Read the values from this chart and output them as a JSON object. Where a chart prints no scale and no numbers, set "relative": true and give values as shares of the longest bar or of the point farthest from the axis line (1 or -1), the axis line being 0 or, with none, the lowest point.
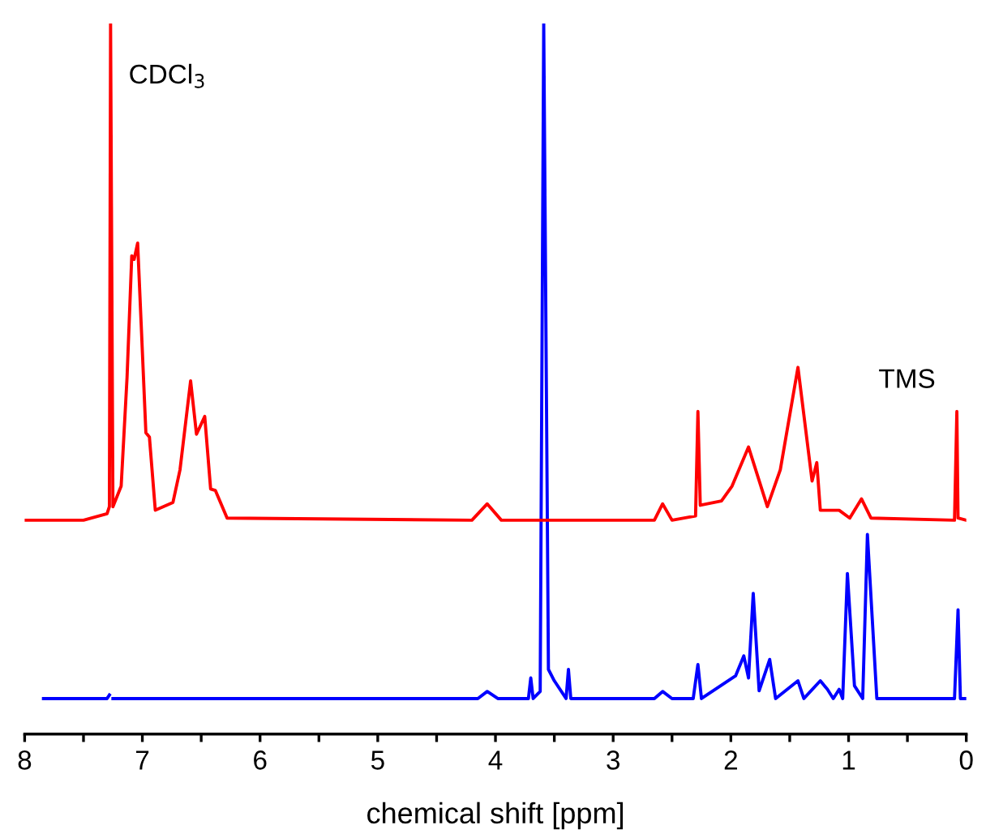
{
  "chart_data": {
    "type": "line",
    "relative": true,
    "xlabel": "chemical shift [ppm]",
    "xlim": [
      8,
      0
    ],
    "xticks": [
      8,
      {
        "value": 7.5,
        "label": null
      },
      7,
      {
        "value": 6.5,
        "label": null
      },
      6,
      {
        "value": 5.5,
        "label": null
      },
      5,
      {
        "value": 4.5,
        "label": null
      },
      4,
      {
        "value": 3.5,
        "label": null
      },
      3,
      {
        "value": 2.5,
        "label": null
      },
      2,
      {
        "value": 1.5,
        "label": null
      },
      1,
      {
        "value": 0.5,
        "label": null
      },
      0
    ],
    "grid": false,
    "legend": false,
    "marker": "none",
    "line_style": "solid",
    "annotations": [
      {
        "text": "CDCl$_{3}$",
        "x": 7.27,
        "y": 1.0
      },
      {
        "text": "TMS",
        "x": 0.07,
        "y": 0.454
      }
    ],
    "series": [
      {
        "color": "#ff0000",
        "x": [
          8.0,
          7.5,
          7.3,
          7.28,
          7.27,
          7.25,
          7.18,
          7.13,
          7.09,
          7.07,
          7.04,
          7.01,
          6.97,
          6.94,
          6.89,
          6.74,
          6.68,
          6.59,
          6.54,
          6.47,
          6.42,
          6.38,
          6.28,
          4.2,
          4.07,
          3.95,
          2.65,
          2.58,
          2.5,
          2.3,
          2.28,
          2.26,
          2.08,
          1.99,
          1.85,
          1.69,
          1.58,
          1.43,
          1.31,
          1.27,
          1.24,
          1.08,
          0.99,
          0.89,
          0.81,
          0.1,
          0.08,
          0.07,
          0.0
        ],
        "values": [
          0.301,
          0.301,
          0.31,
          0.32,
          1.0,
          0.32,
          0.349,
          0.502,
          0.673,
          0.668,
          0.691,
          0.577,
          0.424,
          0.418,
          0.315,
          0.326,
          0.372,
          0.497,
          0.422,
          0.447,
          0.345,
          0.343,
          0.304,
          0.301,
          0.324,
          0.301,
          0.301,
          0.324,
          0.301,
          0.307,
          0.454,
          0.322,
          0.328,
          0.349,
          0.404,
          0.32,
          0.372,
          0.516,
          0.356,
          0.382,
          0.315,
          0.315,
          0.304,
          0.331,
          0.304,
          0.301,
          0.454,
          0.304,
          0.301
        ]
      },
      {
        "color": "#0000ff",
        "x": [
          7.84,
          7.3,
          7.28,
          7.27,
          7.25,
          4.15,
          4.07,
          3.98,
          3.72,
          3.7,
          3.68,
          3.62,
          3.59,
          3.55,
          3.5,
          3.4,
          3.38,
          3.36,
          2.65,
          2.58,
          2.5,
          2.32,
          2.28,
          2.25,
          1.96,
          1.89,
          1.85,
          1.81,
          1.76,
          1.67,
          1.62,
          1.43,
          1.38,
          1.24,
          1.18,
          1.13,
          1.08,
          1.05,
          1.01,
          0.95,
          0.88,
          0.84,
          0.76,
          0.1,
          0.07,
          0.05,
          0.0
        ],
        "values": [
          0.05,
          0.05,
          0.055,
          null,
          0.05,
          0.05,
          0.06,
          0.05,
          0.05,
          0.079,
          0.05,
          0.06,
          1.0,
          0.091,
          0.075,
          0.05,
          0.091,
          0.05,
          0.05,
          0.06,
          0.05,
          0.05,
          0.098,
          0.05,
          0.082,
          0.11,
          0.079,
          0.198,
          0.061,
          0.105,
          0.05,
          0.075,
          0.05,
          0.075,
          0.063,
          0.05,
          0.063,
          0.05,
          0.226,
          0.068,
          0.05,
          0.281,
          0.05,
          0.05,
          0.175,
          0.05,
          0.05
        ]
      }
    ]
  }
}
